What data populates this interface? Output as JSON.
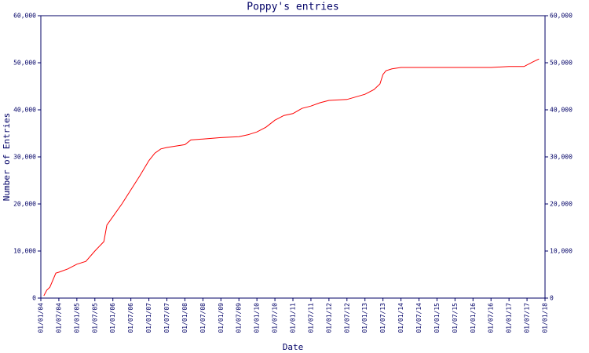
{
  "chart_data": {
    "type": "line",
    "title": "Poppy's entries",
    "x_label": "Date",
    "y_label": "Number of Entries",
    "x": [
      "01/02/04",
      "01/03/04",
      "01/04/04",
      "01/06/04",
      "01/07/04",
      "01/10/04",
      "01/01/05",
      "01/04/05",
      "01/07/05",
      "01/10/05",
      "01/11/05",
      "01/01/06",
      "01/04/06",
      "01/07/06",
      "01/10/06",
      "01/01/07",
      "01/03/07",
      "01/05/07",
      "01/07/07",
      "01/01/08",
      "01/03/08",
      "01/07/08",
      "01/01/09",
      "01/07/09",
      "01/10/09",
      "01/01/10",
      "01/04/10",
      "01/07/10",
      "01/10/10",
      "01/01/11",
      "01/04/11",
      "01/07/11",
      "01/10/11",
      "01/01/12",
      "01/07/12",
      "01/01/13",
      "01/04/13",
      "01/06/13",
      "01/07/13",
      "01/08/13",
      "01/10/13",
      "01/01/14",
      "01/07/16",
      "01/01/17",
      "01/06/17",
      "01/09/17",
      "01/11/17"
    ],
    "series": [
      {
        "name": "Entries",
        "color": "#ff0000",
        "values": [
          500,
          1700,
          2300,
          5300,
          5500,
          6200,
          7200,
          7800,
          10000,
          12000,
          15500,
          17300,
          20000,
          23000,
          26000,
          29200,
          30800,
          31700,
          32000,
          32600,
          33600,
          33800,
          34100,
          34300,
          34700,
          35300,
          36300,
          37800,
          38800,
          39200,
          40300,
          40800,
          41500,
          42000,
          42200,
          43300,
          44300,
          45500,
          47500,
          48300,
          48700,
          49000,
          49000,
          49200,
          49200,
          50200,
          50800
        ]
      }
    ],
    "xlim": [
      "01/01/04",
      "01/01/18"
    ],
    "xticks": [
      "01/01/04",
      "01/07/04",
      "01/01/05",
      "01/07/05",
      "01/01/06",
      "01/07/06",
      "01/01/07",
      "01/07/07",
      "01/01/08",
      "01/07/08",
      "01/01/09",
      "01/07/09",
      "01/01/10",
      "01/07/10",
      "01/01/11",
      "01/07/11",
      "01/01/12",
      "01/07/12",
      "01/01/13",
      "01/07/13",
      "01/01/14",
      "01/07/14",
      "01/01/15",
      "01/07/15",
      "01/01/16",
      "01/07/16",
      "01/01/17",
      "01/07/17",
      "01/01/18"
    ],
    "ylim": [
      0,
      60000
    ],
    "yticks": [
      0,
      {
        "value": 10000,
        "label": "10,000"
      },
      {
        "value": 20000,
        "label": "20,000"
      },
      {
        "value": 30000,
        "label": "30,000"
      },
      {
        "value": 40000,
        "label": "40,000"
      },
      {
        "value": 50000,
        "label": "50,000"
      },
      {
        "value": 60000,
        "label": "60,000"
      }
    ],
    "axis_color": "#000066"
  }
}
